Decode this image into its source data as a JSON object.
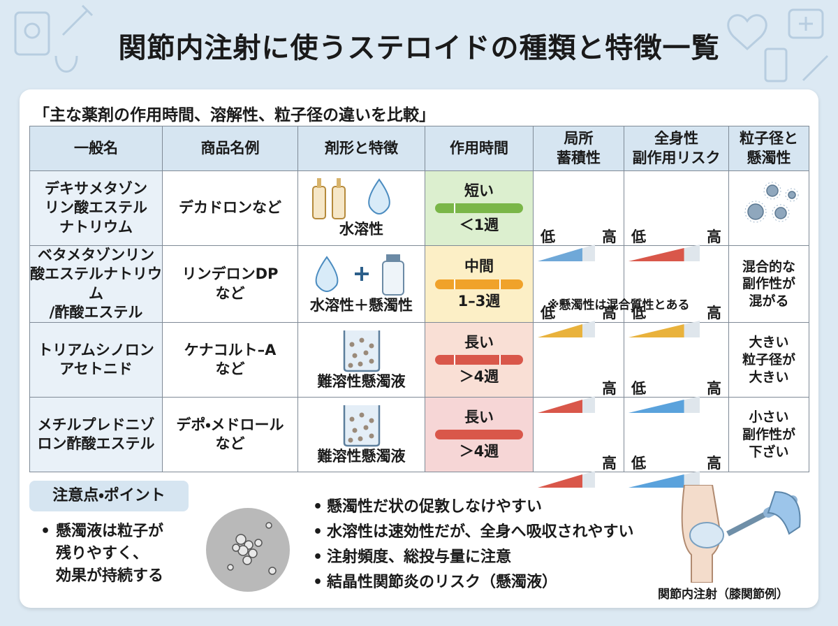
{
  "header": {
    "title": "関節内注射に使うステロイドの種類と特徴一覧"
  },
  "table": {
    "caption": "「主な薬剤の作用時間、溶解性、粒子径の違いを比較」",
    "headers": [
      "一般名",
      "商品名例",
      "剤形と特徴",
      "作用時間",
      "局所\n蓄積性",
      "全身性\n副作用リスク",
      "粒子径と\n懸濁性"
    ],
    "rows": [
      {
        "name": "デキサメタゾン\nリン酸エステル\nナトリウム",
        "product": "デカドロンなど",
        "form": "水溶性",
        "duration": "短い",
        "period": "＜1週",
        "local": [
          "低",
          "高"
        ],
        "systemic": [
          "低",
          "高"
        ]
      },
      {
        "name": "ベタメタゾンリン\n酸エステルナトリウム\n/酢酸エステル",
        "product": "リンデロンDP\nなど",
        "form": "水溶性＋懸濁性",
        "duration": "中間",
        "period": "1–3週",
        "local": [
          "低",
          "高"
        ],
        "systemic": [
          "低",
          "高"
        ],
        "note": "※懸濁性は混合質性とある",
        "particle": "混合的な\n副作性が\n混がる"
      },
      {
        "name": "トリアムシノロン\nアセトニド",
        "product": "ケナコルト–A\nなど",
        "form": "難溶性懸濁液",
        "duration": "長い",
        "period": "＞4週",
        "local": [
          "高"
        ],
        "systemic": [
          "低",
          "高"
        ],
        "particle": "大きい\n粒子径が\n大きい"
      },
      {
        "name": "メチルプレドニゾ\nロン酢酸エステル",
        "product": "デポ・メドロール\nなど",
        "form": "難溶性懸濁液",
        "duration": "長い",
        "period": "＞4週",
        "local": [
          "高"
        ],
        "systemic": [
          "低",
          "高"
        ],
        "particle": "小さい\n副作性が\n下ざい"
      }
    ]
  },
  "notes": {
    "heading": "注意点・ポイント",
    "summary": "懸濁液は粒子が\n残りやすく、\n効果が持続する",
    "points": [
      "懸濁性だ状の促敦しなけやすい",
      "水溶性は速効性だが、全身へ吸収されやすい",
      "注射頻度、総投与量に注意",
      "結晶性関節炎のリスク（懸濁液）"
    ],
    "caption": "関節内注射（膝関節例）"
  }
}
